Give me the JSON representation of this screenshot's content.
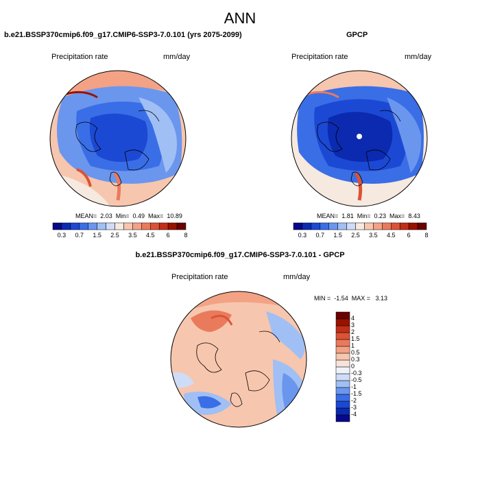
{
  "title": "ANN",
  "panels": [
    {
      "title": "b.e21.BSSP370cmip6.f09_g17.CMIP6-SSP3-7.0.101 (yrs 2075-2099)",
      "left_label": "Precipitation rate",
      "right_label": "mm/day",
      "stats": "MEAN=  2.03  Min=  0.49  Max=  10.89"
    },
    {
      "title": "GPCP",
      "left_label": "Precipitation rate",
      "right_label": "mm/day",
      "stats": "MEAN=  1.81  Min=  0.23  Max=  8.43"
    },
    {
      "title": "b.e21.BSSP370cmip6.f09_g17.CMIP6-SSP3-7.0.101 - GPCP",
      "left_label": "Precipitation rate",
      "right_label": "mm/day",
      "stats": "MIN =  -1.54  MAX =   3.13"
    }
  ],
  "colorbar_main": {
    "colors": [
      "#08088a",
      "#0b2ab0",
      "#1c49d4",
      "#3a6ee6",
      "#6b96ee",
      "#a0bff4",
      "#cfdcf8",
      "#f6e9df",
      "#f7c6ae",
      "#f3a285",
      "#ea7a5c",
      "#dc5235",
      "#c22e18",
      "#981300",
      "#6a0000"
    ],
    "tick_labels": [
      "0.3",
      "0.7",
      "1.5",
      "2.5",
      "3.5",
      "4.5",
      "6",
      "8"
    ]
  },
  "colorbar_diff": {
    "colors": [
      "#08088a",
      "#0b2ab0",
      "#1c49d4",
      "#3a6ee6",
      "#6b96ee",
      "#a0bff4",
      "#cfdcf8",
      "#eef2fb",
      "#f6e4da",
      "#f7c6ae",
      "#f3a285",
      "#ea7a5c",
      "#dc5235",
      "#c22e18",
      "#981300",
      "#6a0000"
    ],
    "tick_labels": [
      "4",
      "3",
      "2",
      "1.5",
      "1",
      "0.5",
      "0.3",
      "0",
      "-0.3",
      "-0.5",
      "-1",
      "-1.5",
      "-2",
      "-3",
      "-4"
    ]
  }
}
